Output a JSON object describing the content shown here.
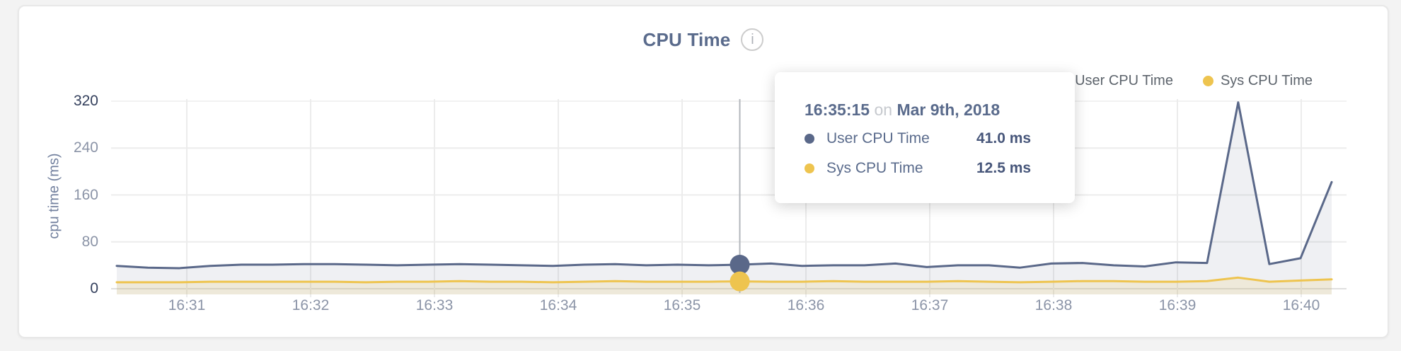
{
  "header": {
    "title": "CPU Time",
    "info_icon_glyph": "i"
  },
  "legend": {
    "items": [
      {
        "label": "User CPU Time",
        "color": "#5a6889"
      },
      {
        "label": "Sys CPU Time",
        "color": "#eec44f"
      }
    ]
  },
  "y_axis": {
    "title": "cpu time (ms)",
    "ticks": [
      {
        "label": "320",
        "value": 320,
        "emphasis": true
      },
      {
        "label": "240",
        "value": 240,
        "emphasis": false
      },
      {
        "label": "160",
        "value": 160,
        "emphasis": false
      },
      {
        "label": "80",
        "value": 80,
        "emphasis": false
      },
      {
        "label": "0",
        "value": 0,
        "emphasis": true
      }
    ]
  },
  "x_axis": {
    "ticks": [
      "16:31",
      "16:32",
      "16:33",
      "16:34",
      "16:35",
      "16:36",
      "16:37",
      "16:38",
      "16:39",
      "16:40"
    ]
  },
  "tooltip": {
    "time": "16:35:15",
    "connector": "on",
    "date": "Mar 9th, 2018",
    "rows": [
      {
        "label": "User CPU Time",
        "value": "41.0 ms",
        "color": "#5a6889"
      },
      {
        "label": "Sys CPU Time",
        "value": "12.5 ms",
        "color": "#eec44f"
      }
    ]
  },
  "chart_data": {
    "type": "line",
    "title": "CPU Time",
    "xlabel": "",
    "ylabel": "cpu time (ms)",
    "ylim": [
      0,
      320
    ],
    "y_ticks": [
      0,
      80,
      160,
      240,
      320
    ],
    "grid": true,
    "legend_position": "top-right",
    "x": [
      "16:30:15",
      "16:30:30",
      "16:30:45",
      "16:31:00",
      "16:31:15",
      "16:31:30",
      "16:31:45",
      "16:32:00",
      "16:32:15",
      "16:32:30",
      "16:32:45",
      "16:33:00",
      "16:33:15",
      "16:33:30",
      "16:33:45",
      "16:34:00",
      "16:34:15",
      "16:34:30",
      "16:34:45",
      "16:35:00",
      "16:35:15",
      "16:35:30",
      "16:35:45",
      "16:36:00",
      "16:36:15",
      "16:36:30",
      "16:36:45",
      "16:37:00",
      "16:37:15",
      "16:37:30",
      "16:37:45",
      "16:38:00",
      "16:38:15",
      "16:38:30",
      "16:38:45",
      "16:39:00",
      "16:39:15",
      "16:39:30",
      "16:39:45",
      "16:40:00"
    ],
    "x_tick_labels": [
      "16:31",
      "16:32",
      "16:33",
      "16:34",
      "16:35",
      "16:36",
      "16:37",
      "16:38",
      "16:39",
      "16:40"
    ],
    "series": [
      {
        "name": "User CPU Time",
        "unit": "ms",
        "color": "#5a6889",
        "fill": "rgba(95,108,140,0.10)",
        "values": [
          39,
          36,
          35,
          39,
          41,
          41,
          42,
          42,
          41,
          40,
          41,
          42,
          41,
          40,
          39,
          41,
          42,
          40,
          41,
          40,
          41,
          43,
          39,
          40,
          40,
          43,
          37,
          40,
          40,
          36,
          43,
          44,
          40,
          38,
          45,
          44,
          318,
          42,
          52,
          182
        ]
      },
      {
        "name": "Sys CPU Time",
        "unit": "ms",
        "color": "#eec44f",
        "fill": "rgba(238,196,84,0.16)",
        "values": [
          11,
          11,
          11,
          12,
          12,
          12,
          12,
          12,
          11,
          12,
          12,
          13,
          12,
          12,
          11,
          12,
          13,
          12,
          12,
          12,
          12.5,
          12,
          12,
          13,
          12,
          12,
          12,
          13,
          12,
          11,
          12,
          13,
          13,
          12,
          12,
          13,
          19,
          12,
          14,
          16
        ]
      }
    ],
    "highlighted_point": {
      "index": 20,
      "time": "16:35:15",
      "user_cpu_ms": 41.0,
      "sys_cpu_ms": 12.5
    }
  }
}
